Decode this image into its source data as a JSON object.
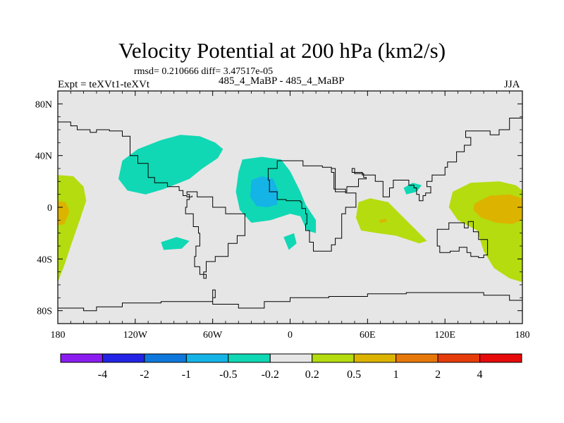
{
  "chart_data": {
    "type": "contour_map",
    "title": "Velocity Potential at 200 hPa (km2/s)",
    "stats_text": "rmsd= 0.210666 diff= 3.47517e-05",
    "left_label": "Expt = teXVt1-teXVt",
    "center_label": "485_4_MaBP - 485_4_MaBP",
    "right_label": "JJA",
    "x_range": [
      -180,
      180
    ],
    "y_range": [
      -90,
      90
    ],
    "x_ticks": [
      {
        "value": -180,
        "label": "180"
      },
      {
        "value": -120,
        "label": "120W"
      },
      {
        "value": -60,
        "label": "60W"
      },
      {
        "value": 0,
        "label": "0"
      },
      {
        "value": 60,
        "label": "60E"
      },
      {
        "value": 120,
        "label": "120E"
      },
      {
        "value": 180,
        "label": "180"
      }
    ],
    "y_ticks": [
      {
        "value": 80,
        "label": "80N"
      },
      {
        "value": 40,
        "label": "40N"
      },
      {
        "value": 0,
        "label": "0"
      },
      {
        "value": -40,
        "label": "40S"
      },
      {
        "value": -80,
        "label": "80S"
      }
    ],
    "background_color": "#e6e6e6",
    "levels": [
      -4,
      -2,
      -1,
      -0.5,
      -0.2,
      0.2,
      0.5,
      1,
      2,
      4
    ],
    "level_labels": [
      "-4",
      "-2",
      "-1",
      "-0.5",
      "-0.2",
      "0.2",
      "0.5",
      "1",
      "2",
      "4"
    ],
    "colors": [
      "#8a1cf0",
      "#2323e6",
      "#0f78dc",
      "#14b4e6",
      "#10d8b4",
      "#e6e6e6",
      "#b4dc0f",
      "#dcb400",
      "#e6780a",
      "#e63c0a",
      "#e60a0a"
    ],
    "regions": [
      {
        "name": "north-atlantic-blob",
        "value": -0.3,
        "points": [
          [
            -130,
            36
          ],
          [
            -118,
            45
          ],
          [
            -100,
            52
          ],
          [
            -85,
            56
          ],
          [
            -70,
            55
          ],
          [
            -58,
            50
          ],
          [
            -52,
            45
          ],
          [
            -56,
            38
          ],
          [
            -68,
            30
          ],
          [
            -78,
            22
          ],
          [
            -98,
            14
          ],
          [
            -112,
            10
          ],
          [
            -126,
            13
          ],
          [
            -133,
            22
          ]
        ]
      },
      {
        "name": "north-africa-blob",
        "value": -0.3,
        "points": [
          [
            -37,
            37
          ],
          [
            -22,
            39
          ],
          [
            -7,
            37
          ],
          [
            0,
            28
          ],
          [
            8,
            12
          ],
          [
            12,
            2
          ],
          [
            20,
            -10
          ],
          [
            20,
            -20
          ],
          [
            13,
            -18
          ],
          [
            8,
            -7
          ],
          [
            0,
            -5
          ],
          [
            -15,
            -10
          ],
          [
            -30,
            -12
          ],
          [
            -39,
            -2
          ],
          [
            -42,
            12
          ],
          [
            -40,
            27
          ]
        ]
      },
      {
        "name": "north-africa-core",
        "value": -0.7,
        "points": [
          [
            -30,
            21
          ],
          [
            -22,
            24
          ],
          [
            -13,
            22
          ],
          [
            -9,
            12
          ],
          [
            -10,
            2
          ],
          [
            -18,
            0
          ],
          [
            -26,
            1
          ],
          [
            -31,
            8
          ]
        ]
      },
      {
        "name": "south-atlantic-blob",
        "value": -0.3,
        "points": [
          [
            -100,
            -27
          ],
          [
            -88,
            -23
          ],
          [
            -78,
            -26
          ],
          [
            -84,
            -32
          ],
          [
            -98,
            -33
          ]
        ]
      },
      {
        "name": "africa-south-blob",
        "value": -0.3,
        "points": [
          [
            -5,
            -23
          ],
          [
            3,
            -20
          ],
          [
            5,
            -28
          ],
          [
            -1,
            -33
          ]
        ]
      },
      {
        "name": "india-blob",
        "value": -0.3,
        "points": [
          [
            88,
            15
          ],
          [
            95,
            19
          ],
          [
            102,
            17
          ],
          [
            98,
            12
          ],
          [
            90,
            10
          ]
        ]
      },
      {
        "name": "dateline-west-blob",
        "value": 0.3,
        "points": [
          [
            -180,
            25
          ],
          [
            -168,
            24
          ],
          [
            -160,
            16
          ],
          [
            -158,
            5
          ],
          [
            -163,
            -10
          ],
          [
            -170,
            -30
          ],
          [
            -175,
            -45
          ],
          [
            -180,
            -58
          ]
        ]
      },
      {
        "name": "dateline-west-core",
        "value": 0.7,
        "points": [
          [
            -180,
            5
          ],
          [
            -174,
            4
          ],
          [
            -171,
            -3
          ],
          [
            -175,
            -13
          ],
          [
            -180,
            -14
          ]
        ]
      },
      {
        "name": "indian-ocean-blob",
        "value": 0.3,
        "points": [
          [
            53,
            4
          ],
          [
            62,
            7
          ],
          [
            76,
            4
          ],
          [
            88,
            -8
          ],
          [
            98,
            -18
          ],
          [
            106,
            -26
          ],
          [
            100,
            -28
          ],
          [
            82,
            -22
          ],
          [
            68,
            -20
          ],
          [
            55,
            -18
          ],
          [
            51,
            -8
          ]
        ]
      },
      {
        "name": "indian-ocean-core",
        "value": 0.7,
        "points": [
          [
            69,
            -10
          ],
          [
            74,
            -9
          ],
          [
            75,
            -11
          ],
          [
            70,
            -12
          ]
        ]
      },
      {
        "name": "west-pacific-blob",
        "value": 0.3,
        "points": [
          [
            126,
            12
          ],
          [
            140,
            19
          ],
          [
            162,
            20
          ],
          [
            175,
            17
          ],
          [
            180,
            13
          ],
          [
            180,
            -58
          ],
          [
            170,
            -55
          ],
          [
            158,
            -47
          ],
          [
            150,
            -34
          ],
          [
            145,
            -18
          ],
          [
            130,
            -10
          ],
          [
            123,
            0
          ]
        ]
      },
      {
        "name": "west-pacific-core",
        "value": 0.7,
        "points": [
          [
            143,
            3
          ],
          [
            155,
            9
          ],
          [
            170,
            10
          ],
          [
            180,
            7
          ],
          [
            180,
            -10
          ],
          [
            172,
            -13
          ],
          [
            160,
            -12
          ],
          [
            148,
            -8
          ],
          [
            142,
            -2
          ]
        ]
      }
    ],
    "coastlines": [
      {
        "name": "south-america",
        "points": [
          [
            -80,
            10
          ],
          [
            -78,
            6
          ],
          [
            -80,
            0
          ],
          [
            -81,
            -5
          ],
          [
            -75,
            -15
          ],
          [
            -71,
            -20
          ],
          [
            -70,
            -30
          ],
          [
            -73,
            -38
          ],
          [
            -74,
            -46
          ],
          [
            -70,
            -52
          ],
          [
            -65,
            -55
          ],
          [
            -67,
            -50
          ],
          [
            -65,
            -42
          ],
          [
            -58,
            -38
          ],
          [
            -48,
            -28
          ],
          [
            -41,
            -22
          ],
          [
            -35,
            -8
          ],
          [
            -35,
            -5
          ],
          [
            -50,
            0
          ],
          [
            -60,
            8
          ],
          [
            -72,
            12
          ],
          [
            -80,
            10
          ]
        ]
      },
      {
        "name": "africa",
        "points": [
          [
            -17,
            21
          ],
          [
            -16,
            12
          ],
          [
            -10,
            6
          ],
          [
            -3,
            5
          ],
          [
            8,
            4
          ],
          [
            9,
            -1
          ],
          [
            12,
            -5
          ],
          [
            13,
            -13
          ],
          [
            12,
            -18
          ],
          [
            15,
            -27
          ],
          [
            18,
            -34
          ],
          [
            26,
            -34
          ],
          [
            32,
            -29
          ],
          [
            35,
            -24
          ],
          [
            40,
            -15
          ],
          [
            40,
            -5
          ],
          [
            43,
            0
          ],
          [
            51,
            11
          ],
          [
            43,
            12
          ],
          [
            35,
            30
          ],
          [
            32,
            31
          ],
          [
            25,
            32
          ],
          [
            10,
            36
          ],
          [
            0,
            36
          ],
          [
            -6,
            36
          ],
          [
            -10,
            30
          ],
          [
            -17,
            21
          ]
        ]
      },
      {
        "name": "australia",
        "points": [
          [
            114,
            -22
          ],
          [
            114,
            -30
          ],
          [
            116,
            -35
          ],
          [
            124,
            -34
          ],
          [
            131,
            -31
          ],
          [
            137,
            -35
          ],
          [
            140,
            -38
          ],
          [
            146,
            -39
          ],
          [
            150,
            -37
          ],
          [
            153,
            -28
          ],
          [
            153,
            -25
          ],
          [
            146,
            -19
          ],
          [
            142,
            -11
          ],
          [
            138,
            -16
          ],
          [
            135,
            -12
          ],
          [
            130,
            -12
          ],
          [
            123,
            -17
          ],
          [
            114,
            -22
          ]
        ]
      },
      {
        "name": "antarctica",
        "points": [
          [
            -180,
            -78
          ],
          [
            -160,
            -80
          ],
          [
            -150,
            -77
          ],
          [
            -130,
            -74
          ],
          [
            -100,
            -73
          ],
          [
            -80,
            -73
          ],
          [
            -60,
            -64
          ],
          [
            -58,
            -70
          ],
          [
            -60,
            -75
          ],
          [
            -40,
            -78
          ],
          [
            -20,
            -73
          ],
          [
            0,
            -70
          ],
          [
            30,
            -69
          ],
          [
            60,
            -67
          ],
          [
            90,
            -66
          ],
          [
            120,
            -66
          ],
          [
            150,
            -68
          ],
          [
            170,
            -72
          ],
          [
            180,
            -78
          ]
        ]
      },
      {
        "name": "north-america-west",
        "points": [
          [
            -180,
            66
          ],
          [
            -170,
            63
          ],
          [
            -165,
            60
          ],
          [
            -155,
            58
          ],
          [
            -150,
            60
          ],
          [
            -140,
            59
          ],
          [
            -130,
            55
          ],
          [
            -124,
            48
          ],
          [
            -124,
            40
          ],
          [
            -118,
            34
          ],
          [
            -110,
            23
          ],
          [
            -105,
            19
          ],
          [
            -95,
            16
          ],
          [
            -86,
            13
          ],
          [
            -83,
            9
          ],
          [
            -80,
            8
          ],
          [
            -77,
            8
          ],
          [
            -76,
            9
          ]
        ]
      },
      {
        "name": "eurasia-east",
        "points": [
          [
            180,
            69
          ],
          [
            170,
            60
          ],
          [
            162,
            56
          ],
          [
            155,
            59
          ],
          [
            143,
            59
          ],
          [
            136,
            54
          ],
          [
            140,
            48
          ],
          [
            135,
            43
          ],
          [
            129,
            35
          ],
          [
            122,
            31
          ],
          [
            120,
            25
          ],
          [
            110,
            20
          ],
          [
            106,
            16
          ],
          [
            109,
            11
          ],
          [
            105,
            9
          ],
          [
            103,
            5
          ],
          [
            100,
            10
          ],
          [
            98,
            15
          ],
          [
            96,
            17
          ],
          [
            92,
            21
          ],
          [
            86,
            21
          ],
          [
            80,
            15
          ],
          [
            77,
            8
          ],
          [
            72,
            20
          ],
          [
            66,
            25
          ],
          [
            57,
            25
          ],
          [
            56,
            27
          ],
          [
            48,
            30
          ],
          [
            50,
            26
          ],
          [
            57,
            23
          ],
          [
            59,
            22
          ],
          [
            53,
            16
          ],
          [
            44,
            12
          ],
          [
            43,
            14
          ],
          [
            34,
            27
          ],
          [
            32,
            30
          ]
        ]
      }
    ]
  }
}
